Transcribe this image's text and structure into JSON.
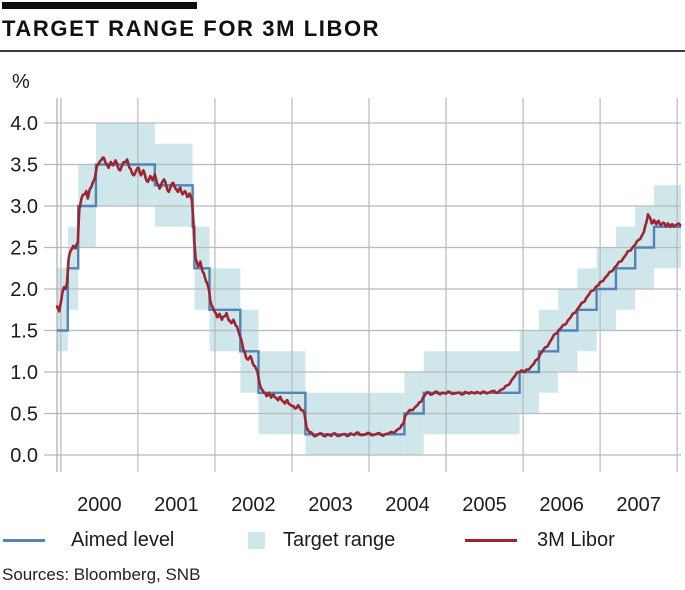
{
  "header": {
    "title": "TARGET RANGE FOR 3M LIBOR"
  },
  "y_axis_unit": "%",
  "legend": [
    {
      "label": "Aimed level",
      "type": "line",
      "color": "#5584b4"
    },
    {
      "label": "Target range",
      "type": "box",
      "color": "#cfe7eb"
    },
    {
      "label": "3M Libor",
      "type": "line",
      "color": "#9c2531"
    }
  ],
  "footer": {
    "sources": "Sources: Bloomberg, SNB"
  },
  "colors": {
    "band": "#cfe7eb",
    "aimed_line": "#5584b4",
    "libor_line": "#9c2531",
    "gridline": "#b7bbbb",
    "axis": "#a9adad",
    "text": "#1c1c1c",
    "accent_bar": "#0d0d0d"
  },
  "chart_data": {
    "type": "line",
    "title": "TARGET RANGE FOR 3M LIBOR",
    "xlabel": "",
    "ylabel": "%",
    "ylim": [
      0,
      4.0
    ],
    "xlim": [
      1999.95,
      2008.05
    ],
    "grid": true,
    "legend_position": "bottom",
    "y_ticks": [
      4.0,
      3.5,
      3.0,
      2.5,
      2.0,
      1.5,
      1.0,
      0.5,
      0.0
    ],
    "y_tick_labels": [
      "4.0",
      "3.5",
      "3.0",
      "2.5",
      "2.0",
      "1.5",
      "1.0",
      "0.5",
      "0.0"
    ],
    "x_gridline_years": [
      2000,
      2001,
      2002,
      2003,
      2004,
      2005,
      2006,
      2007,
      2008
    ],
    "x_tick_labels": [
      "2000",
      "2001",
      "2002",
      "2003",
      "2004",
      "2005",
      "2006",
      "2007"
    ],
    "series": [
      {
        "name": "Target range",
        "type": "band",
        "segments": [
          [
            1999.95,
            2000.09,
            1.25,
            2.25
          ],
          [
            2000.09,
            2000.225,
            1.75,
            2.75
          ],
          [
            2000.225,
            2000.455,
            2.5,
            3.5
          ],
          [
            2000.455,
            2001.22,
            3.0,
            4.0
          ],
          [
            2001.22,
            2001.71,
            2.75,
            3.75
          ],
          [
            2001.71,
            2001.735,
            2.25,
            3.25
          ],
          [
            2001.735,
            2001.93,
            1.75,
            2.75
          ],
          [
            2001.93,
            2002.33,
            1.25,
            2.25
          ],
          [
            2002.33,
            2002.565,
            0.75,
            1.75
          ],
          [
            2002.565,
            2003.175,
            0.25,
            1.25
          ],
          [
            2003.175,
            2004.46,
            0,
            0.75
          ],
          [
            2004.46,
            2004.71,
            0,
            1.0
          ],
          [
            2004.71,
            2005.955,
            0.25,
            1.25
          ],
          [
            2005.955,
            2006.205,
            0.5,
            1.5
          ],
          [
            2006.205,
            2006.455,
            0.75,
            1.75
          ],
          [
            2006.455,
            2006.705,
            1.0,
            2.0
          ],
          [
            2006.705,
            2006.955,
            1.25,
            2.25
          ],
          [
            2006.955,
            2007.205,
            1.5,
            2.5
          ],
          [
            2007.205,
            2007.455,
            1.75,
            2.75
          ],
          [
            2007.455,
            2007.7,
            2.0,
            3.0
          ],
          [
            2007.7,
            2008.05,
            2.25,
            3.25
          ]
        ]
      },
      {
        "name": "Aimed level",
        "type": "step",
        "segments": [
          [
            1999.95,
            2000.09,
            1.5
          ],
          [
            2000.09,
            2000.225,
            2.25
          ],
          [
            2000.225,
            2000.455,
            3.0
          ],
          [
            2000.455,
            2001.22,
            3.5
          ],
          [
            2001.22,
            2001.71,
            3.25
          ],
          [
            2001.71,
            2001.735,
            2.75
          ],
          [
            2001.735,
            2001.93,
            2.25
          ],
          [
            2001.93,
            2002.33,
            1.75
          ],
          [
            2002.33,
            2002.565,
            1.25
          ],
          [
            2002.565,
            2003.175,
            0.75
          ],
          [
            2003.175,
            2004.46,
            0.25
          ],
          [
            2004.46,
            2004.71,
            0.5
          ],
          [
            2004.71,
            2005.955,
            0.75
          ],
          [
            2005.955,
            2006.205,
            1.0
          ],
          [
            2006.205,
            2006.455,
            1.25
          ],
          [
            2006.455,
            2006.705,
            1.5
          ],
          [
            2006.705,
            2006.955,
            1.75
          ],
          [
            2006.955,
            2007.205,
            2.0
          ],
          [
            2007.205,
            2007.455,
            2.25
          ],
          [
            2007.455,
            2007.7,
            2.5
          ],
          [
            2007.7,
            2008.05,
            2.75
          ]
        ]
      },
      {
        "name": "3M Libor",
        "type": "line",
        "points": [
          [
            1999.95,
            1.79
          ],
          [
            1999.98,
            1.73
          ],
          [
            2000.0,
            1.84
          ],
          [
            2000.02,
            1.96
          ],
          [
            2000.04,
            2.02
          ],
          [
            2000.06,
            2.0
          ],
          [
            2000.08,
            2.08
          ],
          [
            2000.1,
            2.36
          ],
          [
            2000.13,
            2.47
          ],
          [
            2000.16,
            2.52
          ],
          [
            2000.19,
            2.49
          ],
          [
            2000.22,
            2.56
          ],
          [
            2000.24,
            2.96
          ],
          [
            2000.27,
            3.1
          ],
          [
            2000.3,
            3.14
          ],
          [
            2000.33,
            3.18
          ],
          [
            2000.35,
            3.09
          ],
          [
            2000.38,
            3.21
          ],
          [
            2000.41,
            3.27
          ],
          [
            2000.44,
            3.33
          ],
          [
            2000.47,
            3.49
          ],
          [
            2000.5,
            3.53
          ],
          [
            2000.53,
            3.56
          ],
          [
            2000.56,
            3.58
          ],
          [
            2000.59,
            3.51
          ],
          [
            2000.62,
            3.46
          ],
          [
            2000.65,
            3.53
          ],
          [
            2000.68,
            3.49
          ],
          [
            2000.71,
            3.55
          ],
          [
            2000.74,
            3.47
          ],
          [
            2000.77,
            3.43
          ],
          [
            2000.8,
            3.5
          ],
          [
            2000.83,
            3.53
          ],
          [
            2000.86,
            3.56
          ],
          [
            2000.89,
            3.46
          ],
          [
            2000.92,
            3.41
          ],
          [
            2000.95,
            3.37
          ],
          [
            2000.98,
            3.43
          ],
          [
            2001.01,
            3.46
          ],
          [
            2001.04,
            3.37
          ],
          [
            2001.07,
            3.43
          ],
          [
            2001.1,
            3.34
          ],
          [
            2001.13,
            3.29
          ],
          [
            2001.16,
            3.36
          ],
          [
            2001.19,
            3.31
          ],
          [
            2001.22,
            3.38
          ],
          [
            2001.25,
            3.27
          ],
          [
            2001.28,
            3.21
          ],
          [
            2001.31,
            3.28
          ],
          [
            2001.34,
            3.32
          ],
          [
            2001.37,
            3.24
          ],
          [
            2001.4,
            3.17
          ],
          [
            2001.43,
            3.24
          ],
          [
            2001.46,
            3.28
          ],
          [
            2001.49,
            3.21
          ],
          [
            2001.52,
            3.17
          ],
          [
            2001.55,
            3.22
          ],
          [
            2001.58,
            3.14
          ],
          [
            2001.61,
            3.18
          ],
          [
            2001.64,
            3.11
          ],
          [
            2001.67,
            3.15
          ],
          [
            2001.7,
            3.08
          ],
          [
            2001.72,
            2.82
          ],
          [
            2001.73,
            2.6
          ],
          [
            2001.75,
            2.36
          ],
          [
            2001.78,
            2.27
          ],
          [
            2001.81,
            2.33
          ],
          [
            2001.84,
            2.21
          ],
          [
            2001.87,
            2.14
          ],
          [
            2001.9,
            2.07
          ],
          [
            2001.92,
            2.0
          ],
          [
            2001.94,
            1.86
          ],
          [
            2001.97,
            1.78
          ],
          [
            2002.0,
            1.72
          ],
          [
            2002.03,
            1.66
          ],
          [
            2002.06,
            1.7
          ],
          [
            2002.09,
            1.63
          ],
          [
            2002.12,
            1.67
          ],
          [
            2002.15,
            1.71
          ],
          [
            2002.18,
            1.62
          ],
          [
            2002.21,
            1.59
          ],
          [
            2002.24,
            1.63
          ],
          [
            2002.27,
            1.56
          ],
          [
            2002.3,
            1.51
          ],
          [
            2002.34,
            1.4
          ],
          [
            2002.37,
            1.27
          ],
          [
            2002.4,
            1.19
          ],
          [
            2002.43,
            1.15
          ],
          [
            2002.46,
            1.19
          ],
          [
            2002.49,
            1.11
          ],
          [
            2002.52,
            1.07
          ],
          [
            2002.55,
            1.01
          ],
          [
            2002.58,
            0.86
          ],
          [
            2002.61,
            0.79
          ],
          [
            2002.64,
            0.75
          ],
          [
            2002.67,
            0.71
          ],
          [
            2002.7,
            0.75
          ],
          [
            2002.73,
            0.69
          ],
          [
            2002.76,
            0.73
          ],
          [
            2002.79,
            0.69
          ],
          [
            2002.82,
            0.66
          ],
          [
            2002.85,
            0.7
          ],
          [
            2002.88,
            0.65
          ],
          [
            2002.91,
            0.62
          ],
          [
            2002.94,
            0.66
          ],
          [
            2002.97,
            0.61
          ],
          [
            2003.0,
            0.59
          ],
          [
            2003.04,
            0.56
          ],
          [
            2003.08,
            0.6
          ],
          [
            2003.12,
            0.54
          ],
          [
            2003.16,
            0.51
          ],
          [
            2003.19,
            0.33
          ],
          [
            2003.23,
            0.27
          ],
          [
            2003.27,
            0.25
          ],
          [
            2003.31,
            0.23
          ],
          [
            2003.36,
            0.26
          ],
          [
            2003.41,
            0.23
          ],
          [
            2003.46,
            0.25
          ],
          [
            2003.51,
            0.23
          ],
          [
            2003.56,
            0.26
          ],
          [
            2003.61,
            0.23
          ],
          [
            2003.66,
            0.25
          ],
          [
            2003.71,
            0.23
          ],
          [
            2003.76,
            0.26
          ],
          [
            2003.81,
            0.24
          ],
          [
            2003.86,
            0.27
          ],
          [
            2003.91,
            0.24
          ],
          [
            2003.96,
            0.25
          ],
          [
            2004.01,
            0.26
          ],
          [
            2004.06,
            0.24
          ],
          [
            2004.11,
            0.26
          ],
          [
            2004.16,
            0.24
          ],
          [
            2004.21,
            0.25
          ],
          [
            2004.26,
            0.26
          ],
          [
            2004.31,
            0.27
          ],
          [
            2004.36,
            0.3
          ],
          [
            2004.41,
            0.33
          ],
          [
            2004.44,
            0.37
          ],
          [
            2004.47,
            0.47
          ],
          [
            2004.51,
            0.52
          ],
          [
            2004.55,
            0.54
          ],
          [
            2004.59,
            0.57
          ],
          [
            2004.63,
            0.6
          ],
          [
            2004.67,
            0.64
          ],
          [
            2004.7,
            0.69
          ],
          [
            2004.74,
            0.74
          ],
          [
            2004.78,
            0.75
          ],
          [
            2004.82,
            0.73
          ],
          [
            2004.86,
            0.76
          ],
          [
            2004.9,
            0.74
          ],
          [
            2004.95,
            0.75
          ],
          [
            2005.0,
            0.74
          ],
          [
            2005.05,
            0.76
          ],
          [
            2005.1,
            0.74
          ],
          [
            2005.15,
            0.75
          ],
          [
            2005.2,
            0.73
          ],
          [
            2005.25,
            0.76
          ],
          [
            2005.3,
            0.74
          ],
          [
            2005.35,
            0.75
          ],
          [
            2005.4,
            0.76
          ],
          [
            2005.45,
            0.74
          ],
          [
            2005.5,
            0.76
          ],
          [
            2005.55,
            0.75
          ],
          [
            2005.6,
            0.77
          ],
          [
            2005.65,
            0.75
          ],
          [
            2005.7,
            0.78
          ],
          [
            2005.75,
            0.8
          ],
          [
            2005.8,
            0.84
          ],
          [
            2005.85,
            0.9
          ],
          [
            2005.9,
            0.96
          ],
          [
            2005.94,
            1.0
          ],
          [
            2005.98,
            1.02
          ],
          [
            2006.02,
            1.0
          ],
          [
            2006.06,
            1.03
          ],
          [
            2006.1,
            1.06
          ],
          [
            2006.14,
            1.1
          ],
          [
            2006.18,
            1.15
          ],
          [
            2006.22,
            1.21
          ],
          [
            2006.26,
            1.26
          ],
          [
            2006.3,
            1.3
          ],
          [
            2006.34,
            1.35
          ],
          [
            2006.38,
            1.41
          ],
          [
            2006.42,
            1.46
          ],
          [
            2006.46,
            1.5
          ],
          [
            2006.5,
            1.54
          ],
          [
            2006.54,
            1.57
          ],
          [
            2006.58,
            1.62
          ],
          [
            2006.62,
            1.66
          ],
          [
            2006.66,
            1.71
          ],
          [
            2006.7,
            1.75
          ],
          [
            2006.74,
            1.8
          ],
          [
            2006.78,
            1.84
          ],
          [
            2006.82,
            1.89
          ],
          [
            2006.86,
            1.94
          ],
          [
            2006.9,
            1.98
          ],
          [
            2006.94,
            2.02
          ],
          [
            2006.98,
            2.05
          ],
          [
            2007.02,
            2.09
          ],
          [
            2007.06,
            2.13
          ],
          [
            2007.1,
            2.17
          ],
          [
            2007.14,
            2.21
          ],
          [
            2007.18,
            2.25
          ],
          [
            2007.22,
            2.29
          ],
          [
            2007.26,
            2.33
          ],
          [
            2007.3,
            2.37
          ],
          [
            2007.34,
            2.42
          ],
          [
            2007.38,
            2.46
          ],
          [
            2007.42,
            2.5
          ],
          [
            2007.46,
            2.54
          ],
          [
            2007.5,
            2.59
          ],
          [
            2007.54,
            2.64
          ],
          [
            2007.57,
            2.69
          ],
          [
            2007.6,
            2.8
          ],
          [
            2007.62,
            2.9
          ],
          [
            2007.64,
            2.87
          ],
          [
            2007.67,
            2.79
          ],
          [
            2007.7,
            2.83
          ],
          [
            2007.73,
            2.78
          ],
          [
            2007.76,
            2.82
          ],
          [
            2007.79,
            2.77
          ],
          [
            2007.82,
            2.8
          ],
          [
            2007.85,
            2.76
          ],
          [
            2007.88,
            2.79
          ],
          [
            2007.91,
            2.75
          ],
          [
            2007.94,
            2.78
          ],
          [
            2007.97,
            2.76
          ],
          [
            2008.0,
            2.78
          ],
          [
            2008.04,
            2.77
          ]
        ]
      }
    ]
  }
}
